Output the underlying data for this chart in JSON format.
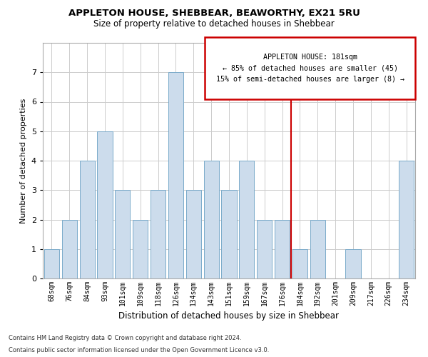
{
  "title": "APPLETON HOUSE, SHEBBEAR, BEAWORTHY, EX21 5RU",
  "subtitle": "Size of property relative to detached houses in Shebbear",
  "xlabel": "Distribution of detached houses by size in Shebbear",
  "ylabel": "Number of detached properties",
  "categories": [
    "68sqm",
    "76sqm",
    "84sqm",
    "93sqm",
    "101sqm",
    "109sqm",
    "118sqm",
    "126sqm",
    "134sqm",
    "143sqm",
    "151sqm",
    "159sqm",
    "167sqm",
    "176sqm",
    "184sqm",
    "192sqm",
    "201sqm",
    "209sqm",
    "217sqm",
    "226sqm",
    "234sqm"
  ],
  "values": [
    1,
    2,
    4,
    5,
    3,
    2,
    3,
    7,
    3,
    4,
    3,
    4,
    2,
    2,
    1,
    2,
    0,
    1,
    0,
    0,
    4
  ],
  "bar_color": "#ccdcec",
  "bar_edge_color": "#7aaaca",
  "ylim": [
    0,
    8
  ],
  "yticks": [
    0,
    1,
    2,
    3,
    4,
    5,
    6,
    7
  ],
  "vline_index": 13.5,
  "vline_color": "#cc0000",
  "annotation_title": "APPLETON HOUSE: 181sqm",
  "annotation_line1": "← 85% of detached houses are smaller (45)",
  "annotation_line2": "15% of semi-detached houses are larger (8) →",
  "annotation_box_color": "#cc0000",
  "footer_line1": "Contains HM Land Registry data © Crown copyright and database right 2024.",
  "footer_line2": "Contains public sector information licensed under the Open Government Licence v3.0.",
  "background_color": "#ffffff",
  "grid_color": "#cccccc"
}
